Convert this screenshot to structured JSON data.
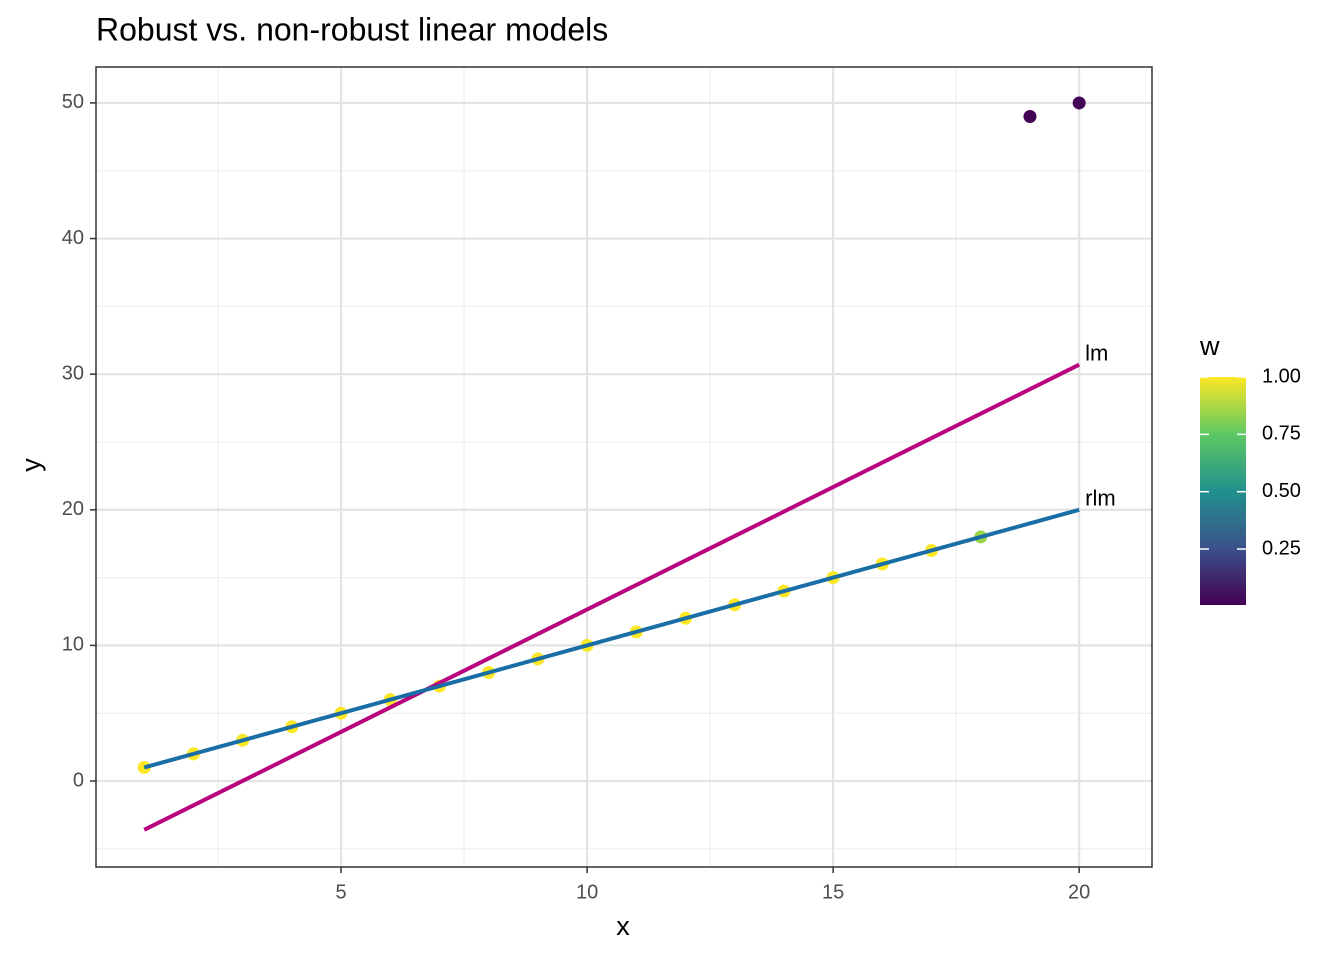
{
  "chart_data": {
    "type": "scatter",
    "title": "Robust vs. non-robust linear models",
    "x_label": "x",
    "y_label": "y",
    "xlim": [
      0.02,
      21.48
    ],
    "ylim": [
      -6.34,
      52.65
    ],
    "xticks": [
      5,
      10,
      15,
      20
    ],
    "yticks": [
      0,
      10,
      20,
      30,
      40,
      50
    ],
    "x_minor_ticks": [
      2.5,
      7.5,
      12.5,
      17.5
    ],
    "y_minor_ticks": [
      -5,
      5,
      15,
      25,
      35,
      45
    ],
    "grid": true,
    "points": {
      "x": [
        1,
        2,
        3,
        4,
        5,
        6,
        7,
        8,
        9,
        10,
        11,
        12,
        13,
        14,
        15,
        16,
        17,
        18,
        19,
        20
      ],
      "y": [
        1,
        2,
        3,
        4,
        5,
        6,
        7,
        8,
        9,
        10,
        11,
        12,
        13,
        14,
        15,
        16,
        17,
        18,
        49,
        50
      ],
      "w": [
        1,
        1,
        1,
        1,
        1,
        1,
        1,
        1,
        1,
        1,
        1,
        1,
        1,
        1,
        1,
        1,
        1,
        0.85,
        0.01,
        0.02
      ]
    },
    "lines": [
      {
        "name": "lm",
        "color": "#b8047f",
        "x": [
          1,
          20
        ],
        "values": [
          -3.6,
          30.7
        ]
      },
      {
        "name": "rlm",
        "color": "#1a6ea6",
        "x": [
          1,
          20
        ],
        "values": [
          1,
          20
        ]
      }
    ],
    "legend": {
      "title": "w",
      "lim": [
        0.006,
        1
      ],
      "ticks": [
        0.25,
        {
          "value": 0.5,
          "label": "0.50"
        },
        0.75,
        {
          "value": 1,
          "label": "1.00"
        }
      ],
      "colorscale": [
        "#440154",
        "#3b528b",
        "#21908c",
        "#5dc963",
        "#fde725"
      ]
    }
  }
}
